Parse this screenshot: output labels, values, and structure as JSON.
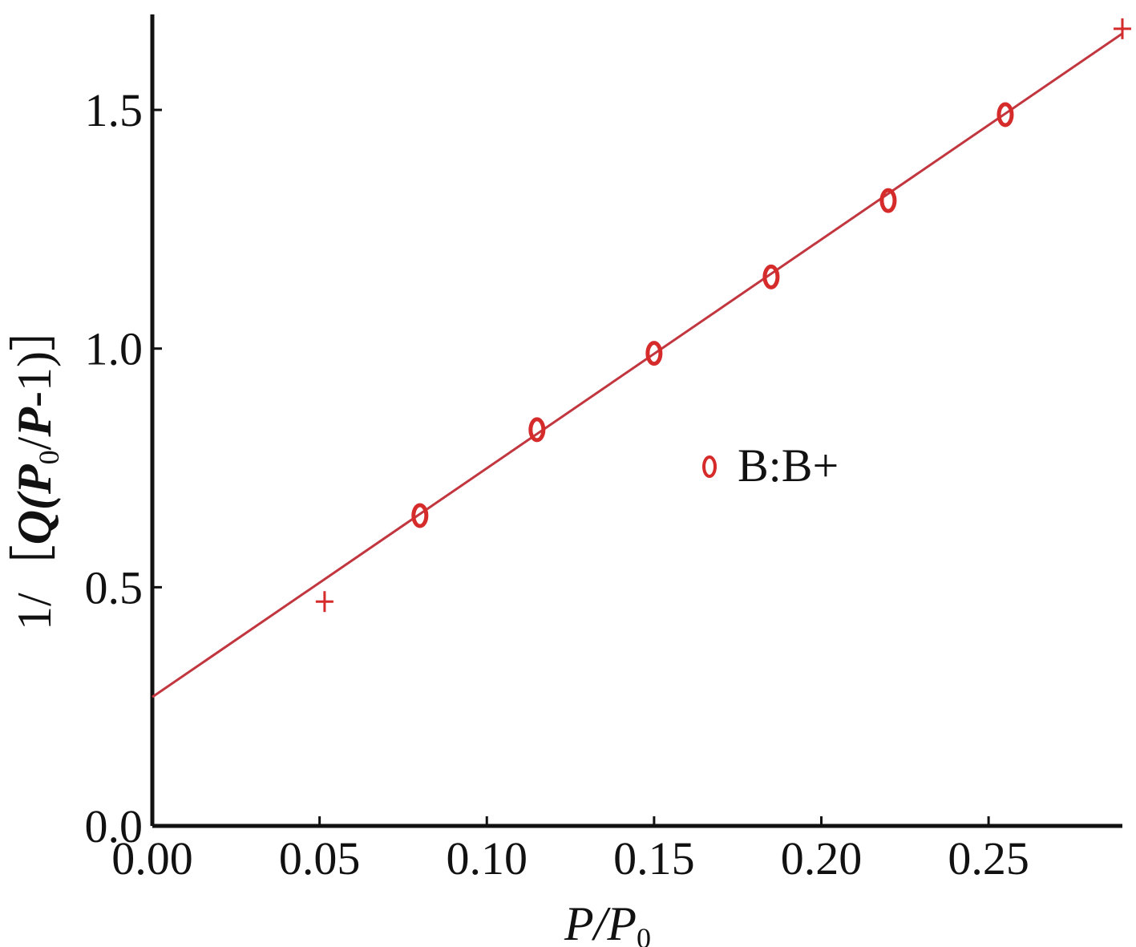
{
  "chart_data": {
    "type": "scatter",
    "title": "",
    "xlabel": {
      "main": "P/P",
      "sub": "0"
    },
    "ylabel": {
      "prefix": "1/［",
      "q": "Q(",
      "p1": "P",
      "sub": "0",
      "mid": "/",
      "p2": "P",
      "suffix": "-1)］"
    },
    "xlim": [
      0.0,
      0.29
    ],
    "ylim": [
      0.0,
      1.7
    ],
    "x_ticks": [
      "0.00",
      "0.05",
      "0.10",
      "0.15",
      "0.20",
      "0.25"
    ],
    "y_ticks": [
      "0.0",
      "0.5",
      "1.0",
      "1.5"
    ],
    "grid": false,
    "legend_position": "center-right",
    "series": [
      {
        "name": "B:B+",
        "marker": "circle",
        "color": "#d62b2b",
        "x": [
          0.08,
          0.115,
          0.15,
          0.185,
          0.22,
          0.255
        ],
        "y": [
          0.65,
          0.83,
          0.99,
          1.15,
          1.31,
          1.49
        ]
      },
      {
        "marker": "plus",
        "color": "#d62b2b",
        "x": [
          0.0515,
          0.29
        ],
        "y": [
          0.47,
          1.67
        ]
      }
    ],
    "fit_line": {
      "color": "#c2373f",
      "x": [
        0.0,
        0.29
      ],
      "y": [
        0.27,
        1.66
      ]
    }
  }
}
